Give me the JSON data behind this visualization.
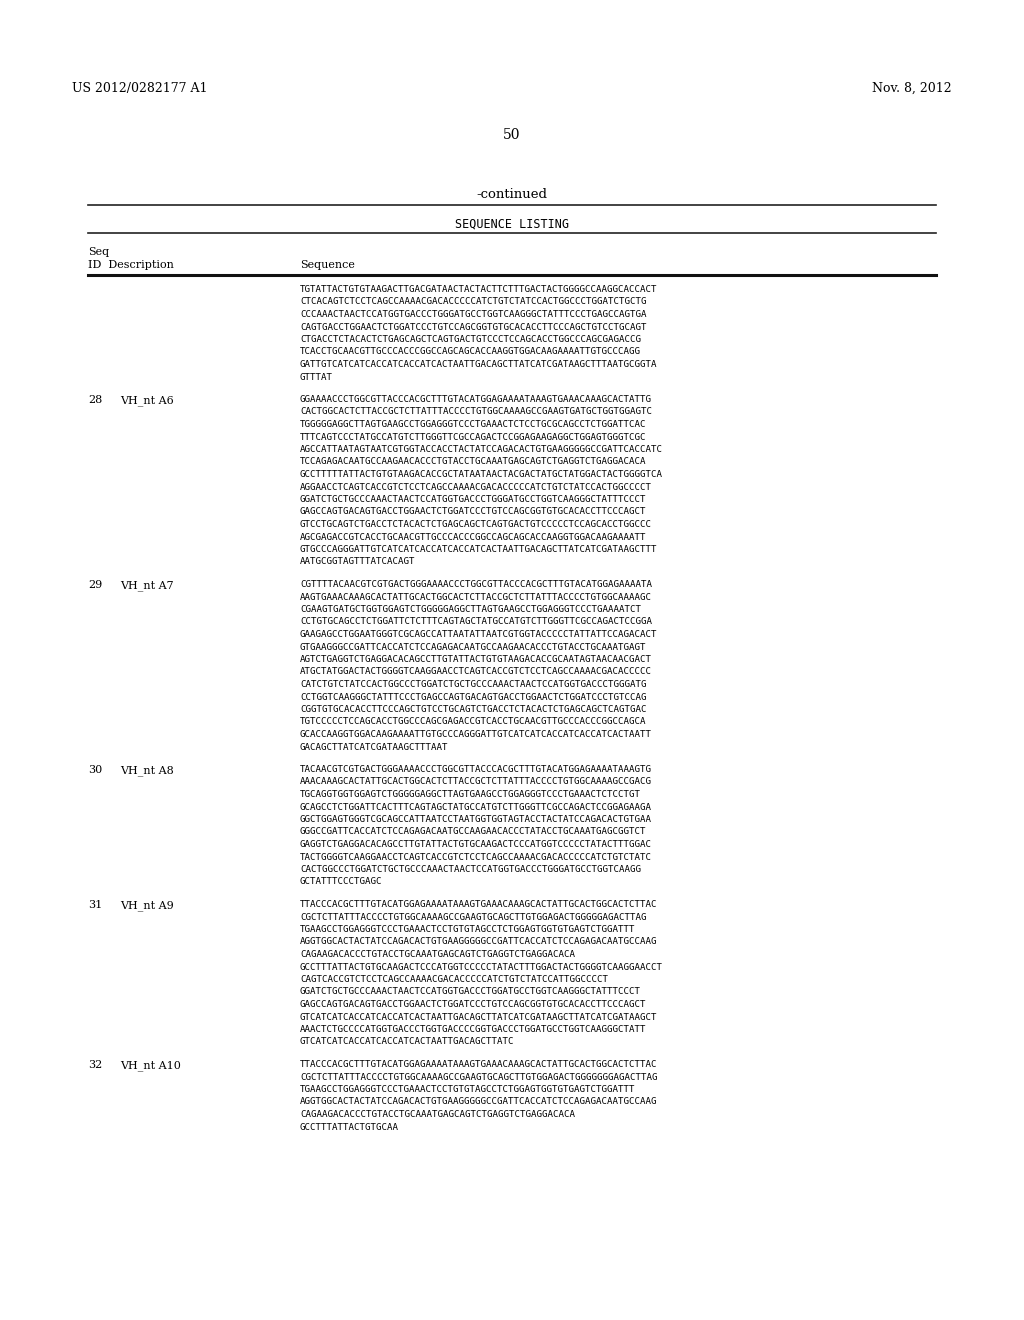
{
  "background_color": "#ffffff",
  "page_number": "50",
  "header_left": "US 2012/0282177 A1",
  "header_right": "Nov. 8, 2012",
  "continued_text": "-continued",
  "section_title": "SEQUENCE LISTING",
  "entries": [
    {
      "seq_id": "",
      "description": "",
      "sequence": [
        "TGTATTACTGTGTAAGACTTGACGATAACTACTACTTCTTTGACTACTGGGGCCAAGGCACCACT",
        "CTCACAGTCTCCTCAGCCAAAACGACACCCCCATCTGTCTATCCACTGGCCCTGGATCTGCTG",
        "CCCAAACTAACTCCATGGTGACCCTGGGATGCCTGGTCAAGGGCTATTTCCCTGAGCCAGTGA",
        "CAGTGACCTGGAACTCTGGATCCCTGTCCAGCGGTGTGCACACCTTCCCAGCTGTCCTGCAGT",
        "CTGACCTCTACACTCTGAGCAGCTCAGTGACTGTCCCTCCAGCACCTGGCCCAGCGAGACCG",
        "TCACCTGCAACGTTGCCCACCCGGCCAGCAGCACCAAGGTGGACAAGAAAATTGTGCCCAGG",
        "GATTGTCATCATCACCATCACCATCACTAATTGACAGCTTATCATCGATAAGCTTTAATGCGGTA",
        "GTTTAT"
      ]
    },
    {
      "seq_id": "28",
      "description": "VH_nt A6",
      "sequence": [
        "GGAAAACCCTGGCGTTACCCACGCTTTGTACATGGAGAAAATAAAGTGAAACAAAGCACTATTG",
        "CACTGGCACTCTTACCGCTCTTATTTACCCCTGTGGCAAAAGCCGAAGTGATGCTGGTGGAGTC",
        "TGGGGGAGGCTTAGTGAAGCCTGGAGGGTCCCTGAAACTCTCCTGCGCAGCCTCTGGATTCAC",
        "TTTCAGTCCCTATGCCATGTCTTGGGTTCGCCAGACTCCGGAGAAGAGGCTGGAGTGGGTCGC",
        "AGCCATTAATAGTAATCGTGGTACCACCTACTATCCAGACACTGTGAAGGGGGCCGATTCACCATC",
        "TCCAGAGACAATGCCAAGAACACCCTGTACCTGCAAATGAGCAGTCTGAGGTCTGAGGACACA",
        "GCCTTTTTATTACTGTGTAAGACACCGCTATAATAACTACGACTATGCTATGGACTACTGGGGTCA",
        "AGGAACCTCAGTCACCGTCTCCTCAGCCAAAACGACACCCCCATCTGTCTATCCACTGGCCCCT",
        "GGATCTGCTGCCCAAACTAACTCCATGGTGACCCTGGGATGCCTGGTCAAGGGCTATTTCCCT",
        "GAGCCAGTGACAGTGACCTGGAACTCTGGATCCCTGTCCAGCGGTGTGCACACCTTCCCAGCT",
        "GTCCTGCAGTCTGACCTCTACACTCTGAGCAGCTCAGTGACTGTCCCCCTCCAGCACCTGGCCC",
        "AGCGAGACCGTCACCTGCAACGTTGCCCACCCGGCCAGCAGCACCAAGGTGGACAAGAAAATT",
        "GTGCCCAGGGATTGTCATCATCACCATCACCATCACTAATTGACAGCTTATCATCGATAAGCTTT",
        "AATGCGGTAGTTTATCACAGT"
      ]
    },
    {
      "seq_id": "29",
      "description": "VH_nt A7",
      "sequence": [
        "CGTTTTACAACGTCGTGACTGGGAAAACCCTGGCGTTACCCACGCTTTGTACATGGAGAAAATA",
        "AAGTGAAACAAAGCACTATTGCACTGGCACTCTTACCGCTCTTATTTACCCCTGTGGCAAAAGC",
        "CGAAGTGATGCTGGTGGAGTCTGGGGGAGGCTTAGTGAAGCCTGGAGGGTCCCTGAAAATCT",
        "CCTGTGCAGCCTCTGGATTCTCTTTCAGTAGCTATGCCATGTCTTGGGTTCGCCAGACTCCGGA",
        "GAAGAGCCTGGAATGGGTCGCAGCCATTAATATTAATCGTGGTACCCCCTATTATTCCAGACACT",
        "GTGAAGGGCCGATTCACCATCTCCAGAGACAATGCCAAGAACACCCTGTACCTGCAAATGAGT",
        "AGTCTGAGGTCTGAGGACACAGCCTTGTATTACTGTGTAAGACACCGCAATAGTAACAACGACT",
        "ATGCTATGGACTACTGGGGTCAAGGAACCTCAGTCACCGTCTCCTCAGCCAAAACGACACCCCC",
        "CATCTGTCTATCCACTGGCCCTGGATCTGCTGCCCAAACTAACTCCATGGTGACCCTGGGATG",
        "CCTGGTCAAGGGCTATTTCCCTGAGCCAGTGACAGTGACCTGGAACTCTGGATCCCTGTCCAG",
        "CGGTGTGCACACCTTCCCAGCTGTCCTGCAGTCTGACCTCTACACTCTGAGCAGCTCAGTGAC",
        "TGTCCCCCTCCAGCACCTGGCCCAGCGAGACCGTCACCTGCAACGTTGCCCACCCGGCCAGCA",
        "GCACCAAGGTGGACAAGAAAATTGTGCCCAGGGATTGTCATCATCACCATCACCATCACTAATT",
        "GACAGCTTATCATCGATAAGCTTTAAT"
      ]
    },
    {
      "seq_id": "30",
      "description": "VH_nt A8",
      "sequence": [
        "TACAACGTCGTGACTGGGAAAACCCTGGCGTTACCCACGCTTTGTACATGGAGAAAATAAAGTG",
        "AAACAAAGCACTATTGCACTGGCACTCTTACCGCTCTTATTTACCCCTGTGGCAAAAGCCGACG",
        "TGCAGGTGGTGGAGTCTGGGGGAGGCTTAGTGAAGCCTGGAGGGTCCCTGAAACTCTCCTGT",
        "GCAGCCTCTGGATTCACTTTCAGTAGCTATGCCATGTCTTGGGTTCGCCAGACTCCGGAGAAGA",
        "GGCTGGAGTGGGTCGCAGCCATTAATCCTAATGGTGGTAGTACCTACTATCCAGACACTGTGAA",
        "GGGCCGATTCACCATCTCCAGAGACAATGCCAAGAACACCCTATACCTGCAAATGAGCGGTCT",
        "GAGGTCTGAGGACACAGCCTTGTATTACTGTGCAAGACTCCCATGGTCCCCCTATACTTTGGAC",
        "TACTGGGGTCAAGGAACCTCAGTCACCGTCTCCTCAGCCAAAACGACACCCCCATCTGTCTATC",
        "CACTGGCCCTGGATCTGCTGCCCAAACTAACTCCATGGTGACCCTGGGATGCCTGGTCAAGG",
        "GCTATTTCCCTGAGC"
      ]
    },
    {
      "seq_id": "31",
      "description": "VH_nt A9",
      "sequence": [
        "TTACCCACGCTTTGTACATGGAGAAAATAAAGTGAAACAAAGCACTATTGCACTGGCACTCTTAC",
        "CGCTCTTATTTACCCCTGTGGCAAAAGCCGAAGTGCAGCTTGTGGAGACTGGGGGAGACTTAG",
        "TGAAGCCTGGAGGGTCCCTGAAACTCCTGTGTAGCCTCTGGAGTGGTGTGAGTCTGGATTT",
        "AGGTGGCACTACTATCCAGACACTGTGAAGGGGGCCGATTCACCATCTCCAGAGACAATGCCAAG",
        "CAGAAGACACCCTGTACCTGCAAATGAGCAGTCTGAGGTCTGAGGACACA",
        "GCCTTTATTACTGTGCAAGACTCCCATGGTCCCCCTATACTTTGGACTACTGGGGTCAAGGAACCT",
        "CAGTCACCGTCTCCTCAGCCAAAACGACACCCCCATCTGTCTATCCATTGGCCCCT",
        "GGATCTGCTGCCCAAACTAACTCCATGGTGACCCTGGATGCCTGGTCAAGGGCTATTTCCCT",
        "GAGCCAGTGACAGTGACCTGGAACTCTGGATCCCTGTCCAGCGGTGTGCACACCTTCCCAGCT",
        "GTCATCATCACCATCACCATCACTAATTGACAGCTTATCATCGATAAGCTTATCATCGATAAGCT",
        "AAACTCTGCCCCATGGTGACCCTGGTGACCCCGGTGACCCTGGATGCCTGGTCAAGGGCTATT",
        "GTCATCATCACCATCACCATCACTAATTGACAGCTTATC"
      ]
    },
    {
      "seq_id": "32",
      "description": "VH_nt A10",
      "sequence": [
        "TTACCCACGCTTTGTACATGGAGAAAATAAAGTGAAACAAAGCACTATTGCACTGGCACTCTTAC",
        "CGCTCTTATTTACCCCTGTGGCAAAAGCCGAAGTGCAGCTTGTGGAGACTGGGGGGGAGACTTAG",
        "TGAAGCCTGGAGGGTCCCTGAAACTCCTGTGTAGCCTCTGGAGTGGTGTGAGTCTGGATTT",
        "AGGTGGCACTACTATCCAGACACTGTGAAGGGGGCCGATTCACCATCTCCAGAGACAATGCCAAG",
        "CAGAAGACACCCTGTACCTGCAAATGAGCAGTCTGAGGTCTGAGGACACA",
        "GCCTTTATTACTGTGCAA"
      ]
    }
  ]
}
